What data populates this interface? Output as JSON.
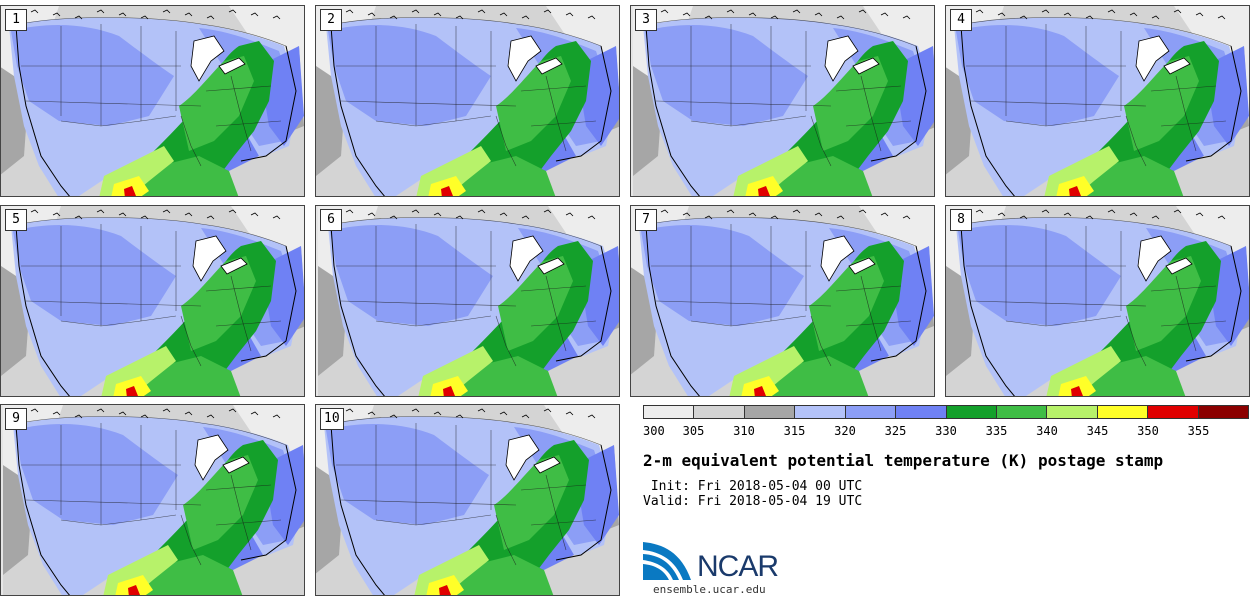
{
  "panels": [
    {
      "label": "1"
    },
    {
      "label": "2"
    },
    {
      "label": "3"
    },
    {
      "label": "4"
    },
    {
      "label": "5"
    },
    {
      "label": "6"
    },
    {
      "label": "7"
    },
    {
      "label": "8"
    },
    {
      "label": "9"
    },
    {
      "label": "10"
    }
  ],
  "colorbar": {
    "colors": [
      "#ededed",
      "#d4d4d4",
      "#a6a6a6",
      "#b3c2f8",
      "#8c9ef6",
      "#6f81f4",
      "#14a02b",
      "#3fbd45",
      "#b7f26a",
      "#ffff28",
      "#e00000",
      "#8b0000"
    ],
    "tick_labels": [
      "300",
      "305",
      "310",
      "315",
      "320",
      "325",
      "330",
      "335",
      "340",
      "345",
      "350",
      "355"
    ]
  },
  "title": "2-m equivalent potential temperature (K) postage stamp",
  "init": " Init: Fri 2018-05-04 00 UTC",
  "valid": "Valid: Fri 2018-05-04 19 UTC",
  "logo": {
    "text": "NCAR",
    "url": "ensemble.ucar.edu",
    "colors": [
      "#0a79c2",
      "#1a3a6b"
    ]
  }
}
